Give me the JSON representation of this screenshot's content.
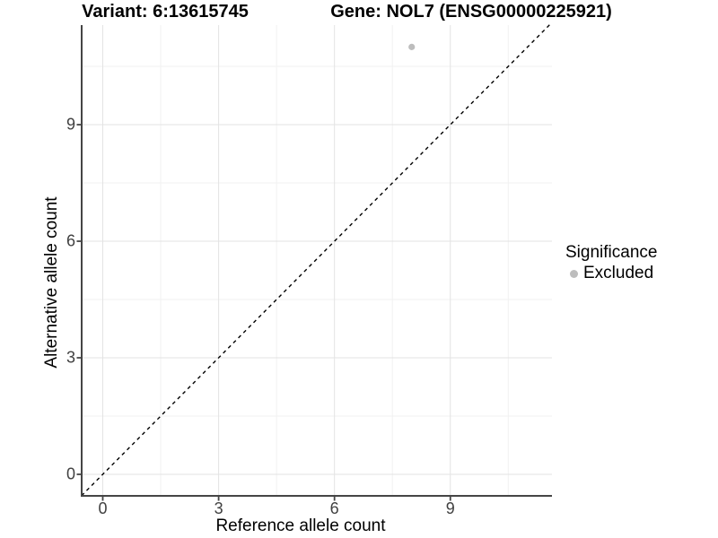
{
  "titles": {
    "variant": "Variant: 6:13615745",
    "gene": "Gene: NOL7 (ENSG00000225921)"
  },
  "legend": {
    "title": "Significance",
    "items": [
      {
        "label": "Excluded",
        "color": "#bdbdbd"
      }
    ]
  },
  "colors": {
    "background": "#ffffff",
    "axis_line": "#454545",
    "tick_label": "#404040",
    "grid_major": "#e3e3e3",
    "grid_minor": "#f1f1f1",
    "reference_line": "#000000",
    "excluded_point": "#bdbdbd"
  },
  "chart_data": {
    "type": "scatter",
    "title_left": "Variant: 6:13615745",
    "title_right": "Gene: NOL7 (ENSG00000225921)",
    "xlabel": "Reference allele count",
    "ylabel": "Alternative allele count",
    "x_ticks": [
      0,
      3,
      6,
      9
    ],
    "y_ticks": [
      0,
      3,
      6,
      9
    ],
    "xlim": [
      -0.55,
      11.64
    ],
    "ylim": [
      -0.55,
      11.62
    ],
    "grid": {
      "major": true,
      "minor": true
    },
    "series": [
      {
        "name": "Excluded",
        "color": "#bdbdbd",
        "points": [
          {
            "x": 8,
            "y": 11
          }
        ]
      }
    ],
    "reference_line": {
      "kind": "identity",
      "slope": 1,
      "intercept": 0,
      "style": "dashed",
      "color": "#000000"
    },
    "legend_title": "Significance",
    "legend_position": "right"
  }
}
